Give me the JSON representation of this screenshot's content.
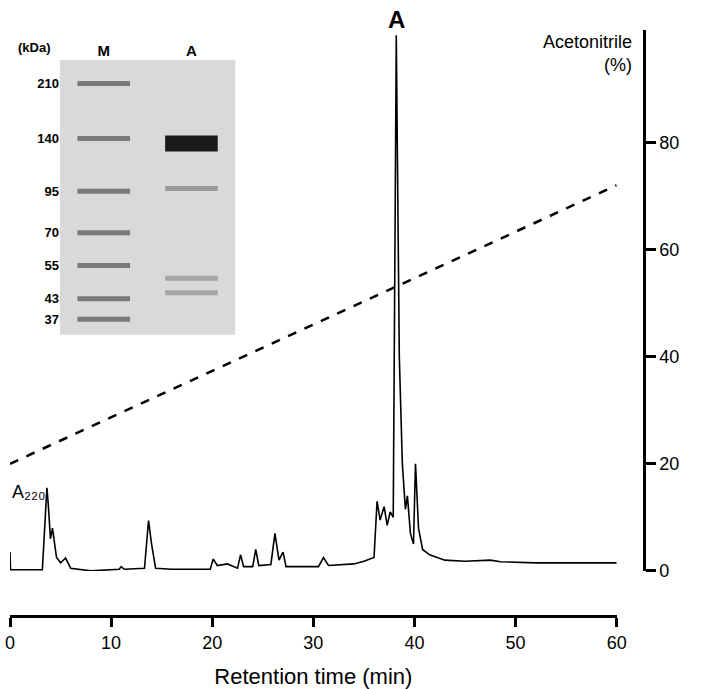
{
  "chart_data": [
    {
      "type": "line",
      "xlabel": "Retention time (min)",
      "ylabel": [
        "Acetonitrile",
        "(%)"
      ],
      "xlim": [
        0,
        60
      ],
      "xticks": [
        0,
        10,
        20,
        30,
        40,
        50,
        60
      ],
      "ylim": [
        0,
        101
      ],
      "yticks": [
        0,
        20,
        40,
        60,
        80
      ],
      "grid": false,
      "series": [
        {
          "color": "#000000",
          "line_style": "solid",
          "x": [
            0,
            0.05,
            3.2,
            3.5,
            3.65,
            3.8,
            4.0,
            4.2,
            4.6,
            5.0,
            5.5,
            6.0,
            8.0,
            10.8,
            11.0,
            11.3,
            13.3,
            13.7,
            14.0,
            14.4,
            16,
            19.8,
            20.1,
            20.5,
            21.5,
            22.5,
            22.8,
            23.1,
            24.0,
            24.3,
            24.6,
            25.8,
            26.2,
            26.6,
            27.0,
            27.3,
            30.5,
            31,
            31.5,
            34,
            35,
            36.0,
            36.3,
            36.6,
            37.0,
            37.3,
            37.6,
            37.9,
            38.2,
            38.5,
            38.8,
            39.1,
            39.3,
            39.6,
            39.9,
            40.1,
            40.4,
            40.8,
            41.5,
            43,
            45,
            47.5,
            48.5,
            52,
            60
          ],
          "values": [
            3.5,
            0.2,
            0.2,
            10,
            15.5,
            12,
            6,
            8,
            2.5,
            1.5,
            2.4,
            0.5,
            0,
            0.3,
            0.8,
            0.3,
            0.5,
            9.4,
            5,
            0.5,
            0.3,
            0.3,
            2.2,
            1.0,
            1.3,
            0.5,
            3,
            0.8,
            0.8,
            4,
            1.0,
            1.2,
            7,
            2,
            3.5,
            0.8,
            0.8,
            2.5,
            1.0,
            1.3,
            1.8,
            2.5,
            13,
            9.5,
            12,
            8.5,
            11,
            10,
            100,
            40,
            20,
            11.5,
            14,
            7,
            5,
            20,
            8,
            4,
            3,
            2,
            1.8,
            2,
            1.7,
            1.5,
            1.5
          ]
        },
        {
          "color": "#000000",
          "line_style": "dash",
          "x": [
            0,
            60
          ],
          "values": [
            20,
            72
          ]
        }
      ],
      "annotations": [
        {
          "text": "A",
          "x": 38.2,
          "y": 100
        },
        {
          "text": "A₂₂₀",
          "x": 0,
          "y": 17
        }
      ]
    },
    {
      "type": "gel",
      "ylabel": "(kDa)",
      "categories": [
        "M",
        "A"
      ],
      "log": "y",
      "ylim": [
        33,
        250
      ],
      "yticks": [
        210,
        140,
        95,
        70,
        55,
        43,
        37
      ],
      "color": "#d9d9d9",
      "lanes": [
        {
          "bands": [
            210,
            140,
            95,
            70,
            55,
            43,
            37
          ],
          "colors": [
            "#7a7a7a",
            "#7a7a7a",
            "#7a7a7a",
            "#7a7a7a",
            "#7a7a7a",
            "#7a7a7a",
            "#7a7a7a"
          ]
        },
        {
          "bands": [
            135,
            97,
            50,
            45
          ],
          "colors": [
            "#1a1a1a",
            "#9a9a9a",
            "#a5a5a5",
            "#a5a5a5"
          ]
        }
      ]
    }
  ]
}
